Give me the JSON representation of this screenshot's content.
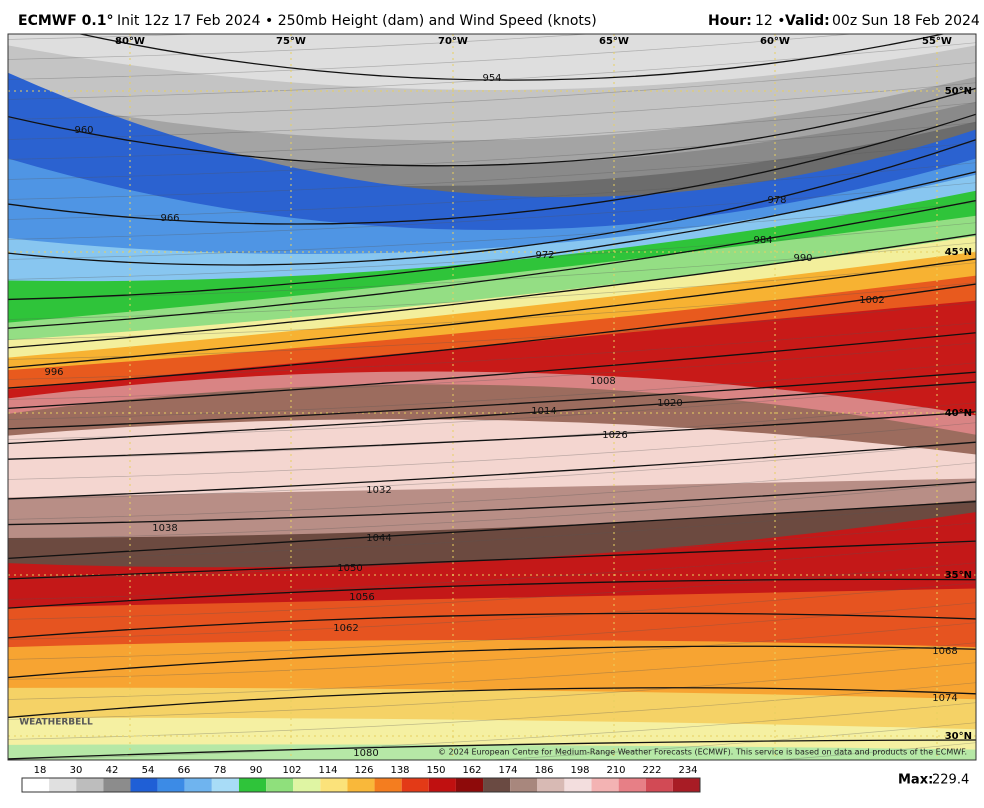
{
  "header": {
    "model": "ECMWF 0.1°",
    "init": "Init 12z 17 Feb 2024 • 250mb Height (dam) and Wind Speed (knots)",
    "hour_label": "Hour:",
    "hour": "12 •",
    "valid_label": "Valid:",
    "valid": "00z Sun 18 Feb 2024"
  },
  "map": {
    "longitudes": [
      "80°W",
      "75°W",
      "70°W",
      "65°W",
      "60°W",
      "55°W"
    ],
    "latitudes": [
      "50°N",
      "45°N",
      "40°N",
      "35°N",
      "30°N"
    ],
    "contour_labels": [
      "954",
      "960",
      "966",
      "972",
      "978",
      "984",
      "990",
      "996",
      "1002",
      "1008",
      "1014",
      "1020",
      "1026",
      "1032",
      "1038",
      "1044",
      "1050",
      "1056",
      "1062",
      "1068",
      "1074",
      "1080"
    ],
    "copyright": "© 2024 European Centre for Medium-Range Weather Forecasts (ECMWF). This service is based on data and products of the ECMWF.",
    "logo": "WEATHERBELL"
  },
  "colorbar": {
    "ticks": [
      18,
      30,
      42,
      54,
      66,
      78,
      90,
      102,
      114,
      126,
      138,
      150,
      162,
      174,
      186,
      198,
      210,
      222,
      234
    ],
    "max_label": "Max:",
    "max_value": "229.4"
  }
}
